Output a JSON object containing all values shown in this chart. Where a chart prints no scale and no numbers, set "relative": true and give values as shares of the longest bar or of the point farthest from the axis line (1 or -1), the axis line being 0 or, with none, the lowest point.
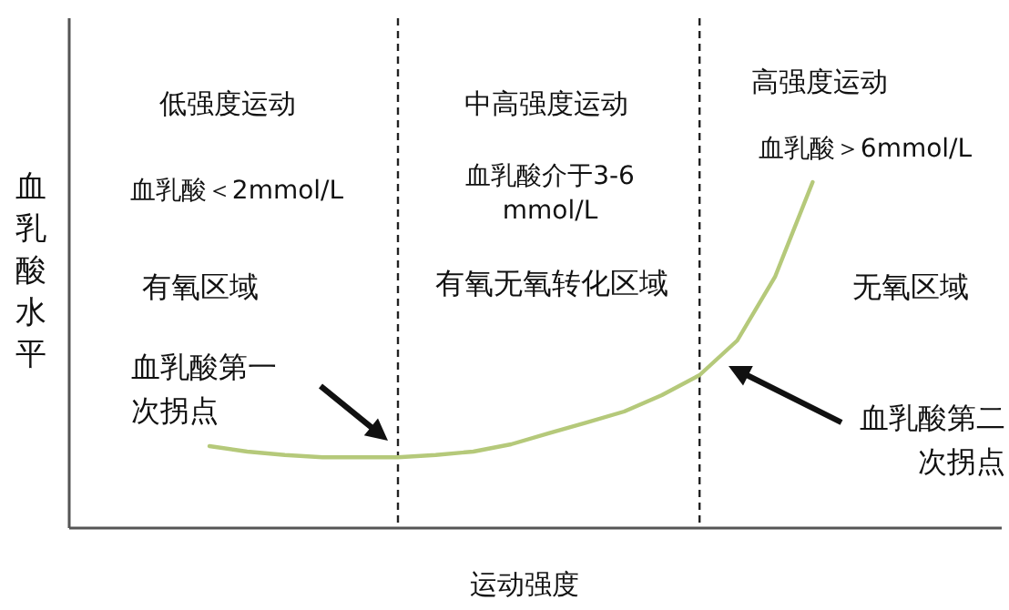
{
  "chart_data": {
    "type": "line",
    "relative": true,
    "xlabel": "运动强度",
    "ylabel": "血乳酸水平",
    "categories": [
      null,
      null,
      null,
      null,
      null,
      null,
      null,
      null,
      null,
      null,
      null,
      null,
      null,
      null,
      null,
      null,
      null
    ],
    "values": [
      0.237,
      0.221,
      0.211,
      0.205,
      0.205,
      0.205,
      0.211,
      0.221,
      0.242,
      0.274,
      0.305,
      0.337,
      0.384,
      0.442,
      0.542,
      0.726,
      1
    ],
    "color": "#b5c97a",
    "line_style": "solid",
    "annotations": [
      "低强度运动",
      "中高强度运动",
      "高强度运动",
      "血乳酸＜2mmol/L",
      "血乳酸介于3-6 mmol/L",
      "血乳酸＞6mmol/L",
      "有氧区域",
      "有氧无氧转化区域",
      "无氧区域",
      "血乳酸第一次拐点",
      "血乳酸第二次拐点"
    ]
  }
}
